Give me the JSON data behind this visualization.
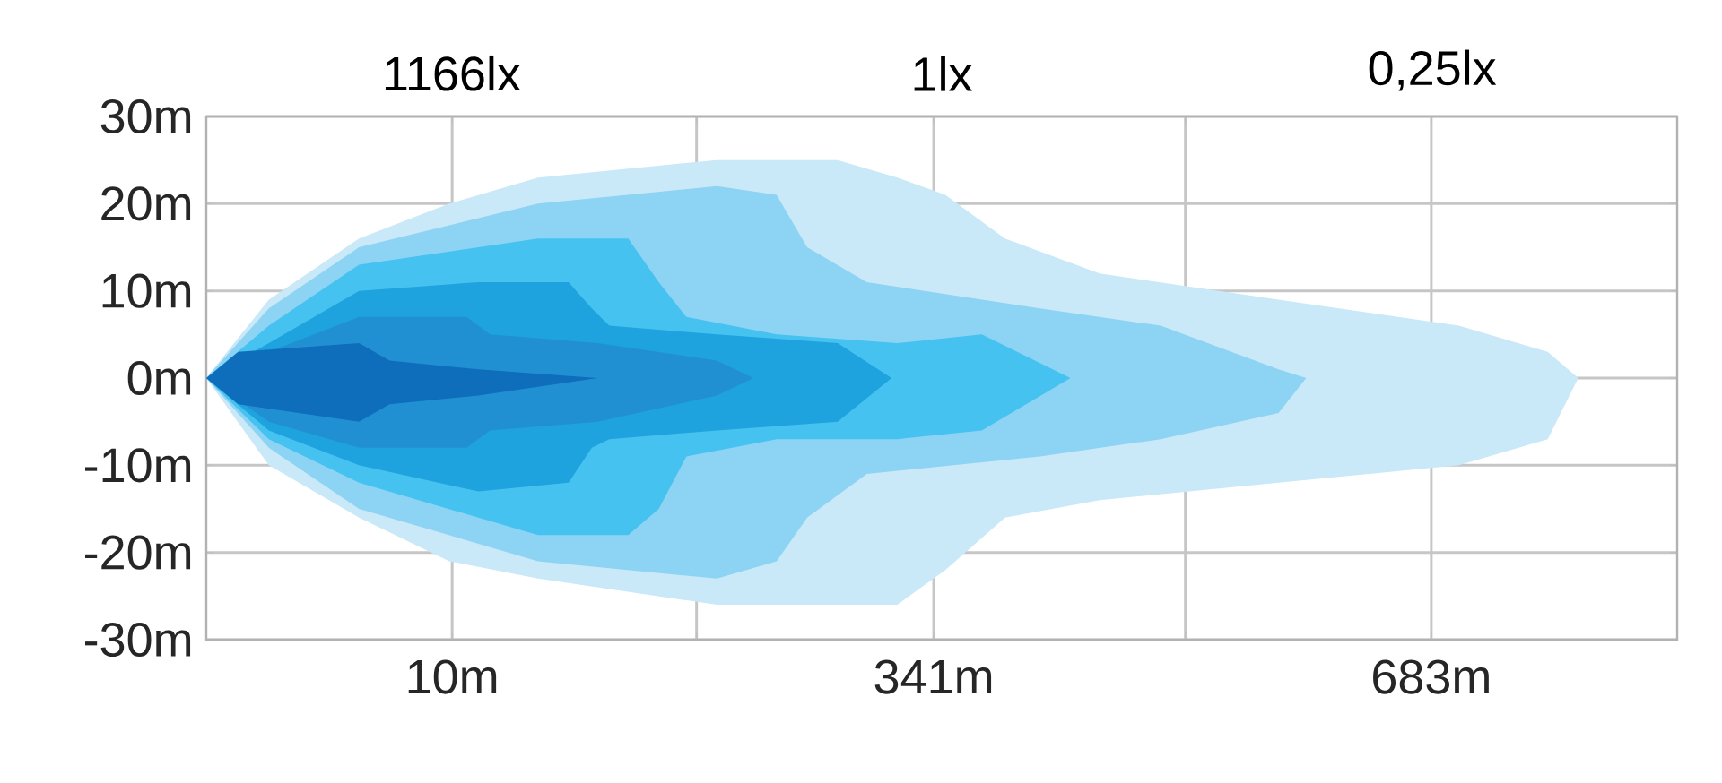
{
  "chart_data": {
    "type": "area",
    "grid": true,
    "xlim": [
      -159,
      852
    ],
    "xticks": [
      {
        "value": 10,
        "label": "10m"
      },
      {
        "value": 178,
        "label": null
      },
      {
        "value": 341,
        "label": "341m"
      },
      {
        "value": 514,
        "label": null
      },
      {
        "value": 683,
        "label": "683m"
      }
    ],
    "ylim": [
      -30,
      30
    ],
    "yticks": [
      {
        "value": -30,
        "label": "-30m"
      },
      {
        "value": -20,
        "label": "-20m"
      },
      {
        "value": -10,
        "label": "-10m"
      },
      {
        "value": 0,
        "label": "0m"
      },
      {
        "value": 10,
        "label": "10m"
      },
      {
        "value": 20,
        "label": "20m"
      },
      {
        "value": 30,
        "label": "30m"
      }
    ],
    "annotations": [
      "1166lx",
      "1lx",
      "0,25lx"
    ],
    "series": [
      {
        "color": "#c9e8f8",
        "x": [
          -159,
          -116,
          -54,
          8,
          69,
          192,
          275,
          316,
          349,
          390,
          455,
          578,
          702,
          763,
          784
        ],
        "values": [
          0,
          9,
          16,
          20,
          23,
          25,
          25,
          23,
          21,
          16,
          12,
          9,
          6,
          3,
          0
        ]
      },
      {
        "color": "#c9e8f8",
        "x": [
          -159,
          -116,
          -54,
          8,
          69,
          192,
          275,
          316,
          349,
          390,
          455,
          578,
          702,
          763,
          784
        ],
        "values": [
          0,
          -10,
          -16,
          -21,
          -23,
          -26,
          -26,
          -26,
          -22,
          -16,
          -14,
          -12,
          -10,
          -7,
          0
        ]
      },
      {
        "color": "#8dd3f3",
        "x": [
          -159,
          -116,
          -54,
          69,
          192,
          233,
          254,
          295,
          414,
          497,
          578,
          597
        ],
        "values": [
          0,
          8,
          15,
          20,
          22,
          21,
          15,
          11,
          8,
          6,
          1,
          0
        ]
      },
      {
        "color": "#8dd3f3",
        "x": [
          -159,
          -116,
          -54,
          69,
          192,
          233,
          254,
          295,
          414,
          497,
          578,
          597
        ],
        "values": [
          0,
          -8,
          -15,
          -21,
          -23,
          -21,
          -16,
          -11,
          -9,
          -7,
          -4,
          0
        ]
      },
      {
        "color": "#45c2f0",
        "x": [
          -159,
          -116,
          -54,
          69,
          131,
          152,
          171,
          233,
          316,
          374,
          435
        ],
        "values": [
          0,
          6,
          13,
          16,
          16,
          11,
          7,
          5,
          4,
          5,
          0
        ]
      },
      {
        "color": "#45c2f0",
        "x": [
          -159,
          -116,
          -54,
          69,
          131,
          152,
          171,
          233,
          316,
          374,
          435
        ],
        "values": [
          0,
          -7,
          -12,
          -18,
          -18,
          -15,
          -9,
          -7,
          -7,
          -6,
          0
        ]
      },
      {
        "color": "#1ea3de",
        "x": [
          -159,
          -116,
          -54,
          28,
          90,
          106,
          118,
          192,
          275,
          312
        ],
        "values": [
          0,
          4,
          10,
          11,
          11,
          8,
          6,
          5,
          4,
          0
        ]
      },
      {
        "color": "#1ea3de",
        "x": [
          -159,
          -116,
          -54,
          28,
          90,
          106,
          118,
          192,
          275,
          312
        ],
        "values": [
          0,
          -6,
          -10,
          -13,
          -12,
          -8,
          -7,
          -6,
          -5,
          0
        ]
      },
      {
        "color": "#2190d3",
        "x": [
          -159,
          -116,
          -54,
          20,
          36,
          110,
          192,
          217
        ],
        "values": [
          0,
          3,
          7,
          7,
          5,
          4,
          2,
          0
        ]
      },
      {
        "color": "#2190d3",
        "x": [
          -159,
          -116,
          -54,
          20,
          36,
          110,
          192,
          217
        ],
        "values": [
          0,
          -5,
          -8,
          -8,
          -6,
          -5,
          -2,
          0
        ]
      },
      {
        "color": "#0e6ebc",
        "x": [
          -159,
          -137,
          -54,
          -33,
          28,
          110
        ],
        "values": [
          0,
          3,
          4,
          2,
          1,
          0
        ]
      },
      {
        "color": "#0e6ebc",
        "x": [
          -159,
          -137,
          -54,
          -33,
          28,
          110
        ],
        "values": [
          0,
          -3,
          -5,
          -3,
          -2,
          0
        ]
      }
    ]
  }
}
